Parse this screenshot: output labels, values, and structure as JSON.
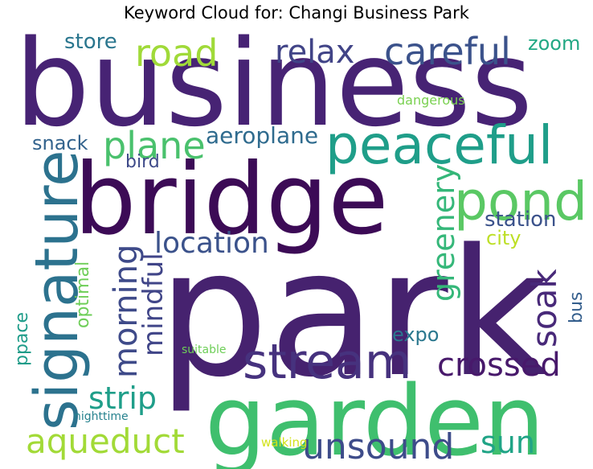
{
  "chart_data": {
    "type": "wordcloud",
    "title": "Keyword Cloud for: Changi Business Park",
    "words": [
      {
        "text": "business",
        "color": "#472374"
      },
      {
        "text": "park",
        "color": "#46226f"
      },
      {
        "text": "bridge",
        "color": "#3c0b56"
      },
      {
        "text": "garden",
        "color": "#3fbf6e"
      },
      {
        "text": "peaceful",
        "color": "#1f9e89"
      },
      {
        "text": "pond",
        "color": "#5ac864"
      },
      {
        "text": "signature",
        "color": "#2c728e"
      },
      {
        "text": "stream",
        "color": "#46327e"
      },
      {
        "text": "careful",
        "color": "#3b528b"
      },
      {
        "text": "road",
        "color": "#a0da39"
      },
      {
        "text": "relax",
        "color": "#414487"
      },
      {
        "text": "plane",
        "color": "#4ac16d"
      },
      {
        "text": "aeroplane",
        "color": "#2f6b8e"
      },
      {
        "text": "location",
        "color": "#3b528b"
      },
      {
        "text": "greenery",
        "color": "#35b779"
      },
      {
        "text": "morning",
        "color": "#3e4a89"
      },
      {
        "text": "mindful",
        "color": "#404588"
      },
      {
        "text": "soak",
        "color": "#482979"
      },
      {
        "text": "crossed",
        "color": "#48196b"
      },
      {
        "text": "strip",
        "color": "#1f9e89"
      },
      {
        "text": "aqueduct",
        "color": "#a2da37"
      },
      {
        "text": "unsound",
        "color": "#3e4c8a"
      },
      {
        "text": "sun",
        "color": "#20a486"
      },
      {
        "text": "store",
        "color": "#2a768e"
      },
      {
        "text": "zoom",
        "color": "#22a884"
      },
      {
        "text": "snack",
        "color": "#33638d"
      },
      {
        "text": "bird",
        "color": "#3e4a89"
      },
      {
        "text": "station",
        "color": "#3b528b"
      },
      {
        "text": "city",
        "color": "#bddf26"
      },
      {
        "text": "optimal",
        "color": "#6ece58"
      },
      {
        "text": "ppace",
        "color": "#1e9c89"
      },
      {
        "text": "expo",
        "color": "#2a778e"
      },
      {
        "text": "bus",
        "color": "#355f8d"
      },
      {
        "text": "dangerous",
        "color": "#7ad151"
      },
      {
        "text": "suitable",
        "color": "#6ece58"
      },
      {
        "text": "nighttime",
        "color": "#26828e"
      },
      {
        "text": "walking",
        "color": "#d2e21b"
      }
    ]
  }
}
